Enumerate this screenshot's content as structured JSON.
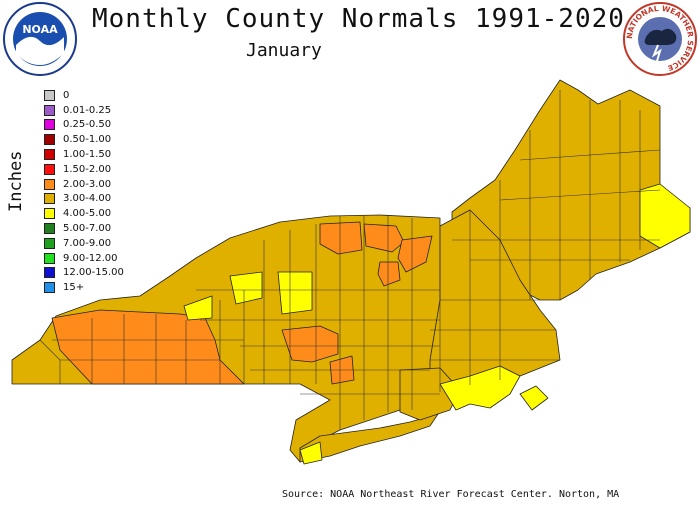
{
  "header": {
    "title": "Monthly County Normals 1991-2020",
    "month": "January"
  },
  "logos": {
    "noaa_word": "NOAA",
    "nws_word": "NATIONAL WEATHER SERVICE"
  },
  "legend": {
    "axis_label": "Inches",
    "items": [
      {
        "label": "0",
        "color": "#c8c8c8"
      },
      {
        "label": "0.01-0.25",
        "color": "#9c5cc8"
      },
      {
        "label": "0.25-0.50",
        "color": "#e000e0"
      },
      {
        "label": "0.50-1.00",
        "color": "#a00000"
      },
      {
        "label": "1.00-1.50",
        "color": "#d00000"
      },
      {
        "label": "1.50-2.00",
        "color": "#ff1010"
      },
      {
        "label": "2.00-3.00",
        "color": "#ff8c1a"
      },
      {
        "label": "3.00-4.00",
        "color": "#e0b000"
      },
      {
        "label": "4.00-5.00",
        "color": "#ffff00"
      },
      {
        "label": "5.00-7.00",
        "color": "#208020"
      },
      {
        "label": "7.00-9.00",
        "color": "#20a020"
      },
      {
        "label": "9.00-12.00",
        "color": "#20e020"
      },
      {
        "label": "12.00-15.00",
        "color": "#1010d0"
      },
      {
        "label": "15+",
        "color": "#2090e8"
      }
    ]
  },
  "map_colors": {
    "c2_3": "#ff8c1a",
    "c3_4": "#e0b000",
    "c4_5": "#ffff00",
    "border": "#222222"
  },
  "footer": {
    "source": "Source: NOAA Northeast River Forecast Center. Norton, MA"
  }
}
